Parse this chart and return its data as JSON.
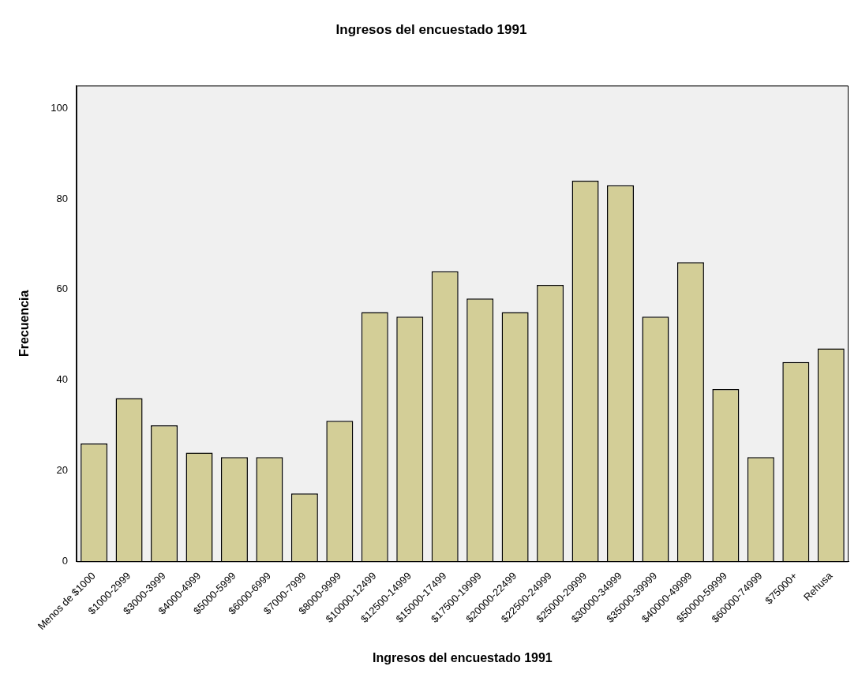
{
  "chart_data": {
    "type": "bar",
    "title": "Ingresos del encuestado 1991",
    "xlabel": "Ingresos del encuestado 1991",
    "ylabel": "Frecuencia",
    "categories": [
      "Menos de $1000",
      "$1000-2999",
      "$3000-3999",
      "$4000-4999",
      "$5000-5999",
      "$6000-6999",
      "$7000-7999",
      "$8000-9999",
      "$10000-12499",
      "$12500-14999",
      "$15000-17499",
      "$17500-19999",
      "$20000-22499",
      "$22500-24999",
      "$25000-29999",
      "$30000-34999",
      "$35000-39999",
      "$40000-49999",
      "$50000-59999",
      "$60000-74999",
      "$75000+",
      "Rehusa"
    ],
    "values": [
      26,
      36,
      30,
      24,
      23,
      23,
      15,
      31,
      55,
      54,
      64,
      58,
      55,
      61,
      84,
      83,
      54,
      66,
      38,
      23,
      44,
      47
    ],
    "color": "#d3ce97",
    "ylim": [
      0,
      105
    ],
    "yticks": [
      0,
      20,
      40,
      60,
      80,
      100
    ],
    "grid": false,
    "legend": false
  }
}
